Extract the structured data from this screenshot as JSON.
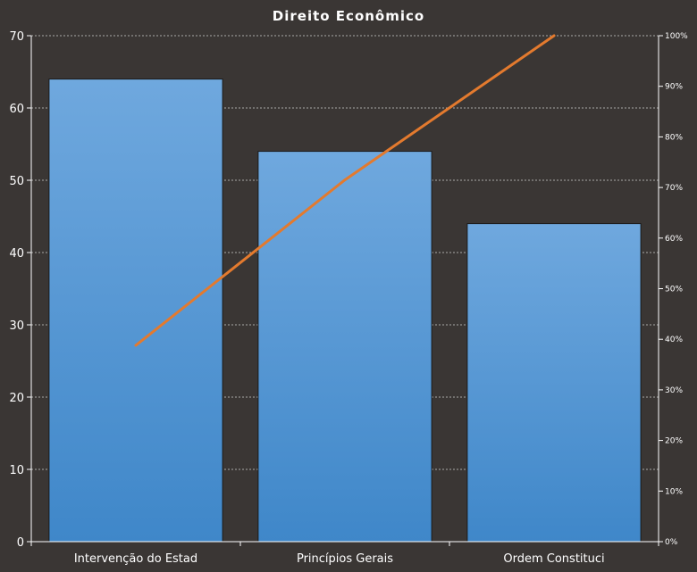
{
  "chart_data": {
    "type": "bar",
    "title": "Direito Econômico",
    "categories": [
      "Intervenção do Estad",
      "Princípios Gerais",
      "Ordem Constituci"
    ],
    "series": [
      {
        "type": "bar",
        "values": [
          64,
          54,
          44
        ]
      },
      {
        "type": "line",
        "axis": "right",
        "values": [
          38.8,
          71.5,
          100
        ]
      }
    ],
    "ylim": [
      0,
      70
    ],
    "y_ticks": [
      "0",
      "10",
      "20",
      "30",
      "40",
      "50",
      "60",
      "70"
    ],
    "y2lim": [
      0,
      100
    ],
    "y2_ticks": [
      "0%",
      "10%",
      "20%",
      "30%",
      "40%",
      "50%",
      "60%",
      "70%",
      "80%",
      "90%",
      "100%"
    ],
    "grid": true,
    "colors": {
      "background": "#3a3634",
      "bar_top": "#6fa8de",
      "bar_bottom": "#3f87c9",
      "line": "#e37a2e",
      "grid": "#cfcfcf"
    }
  }
}
